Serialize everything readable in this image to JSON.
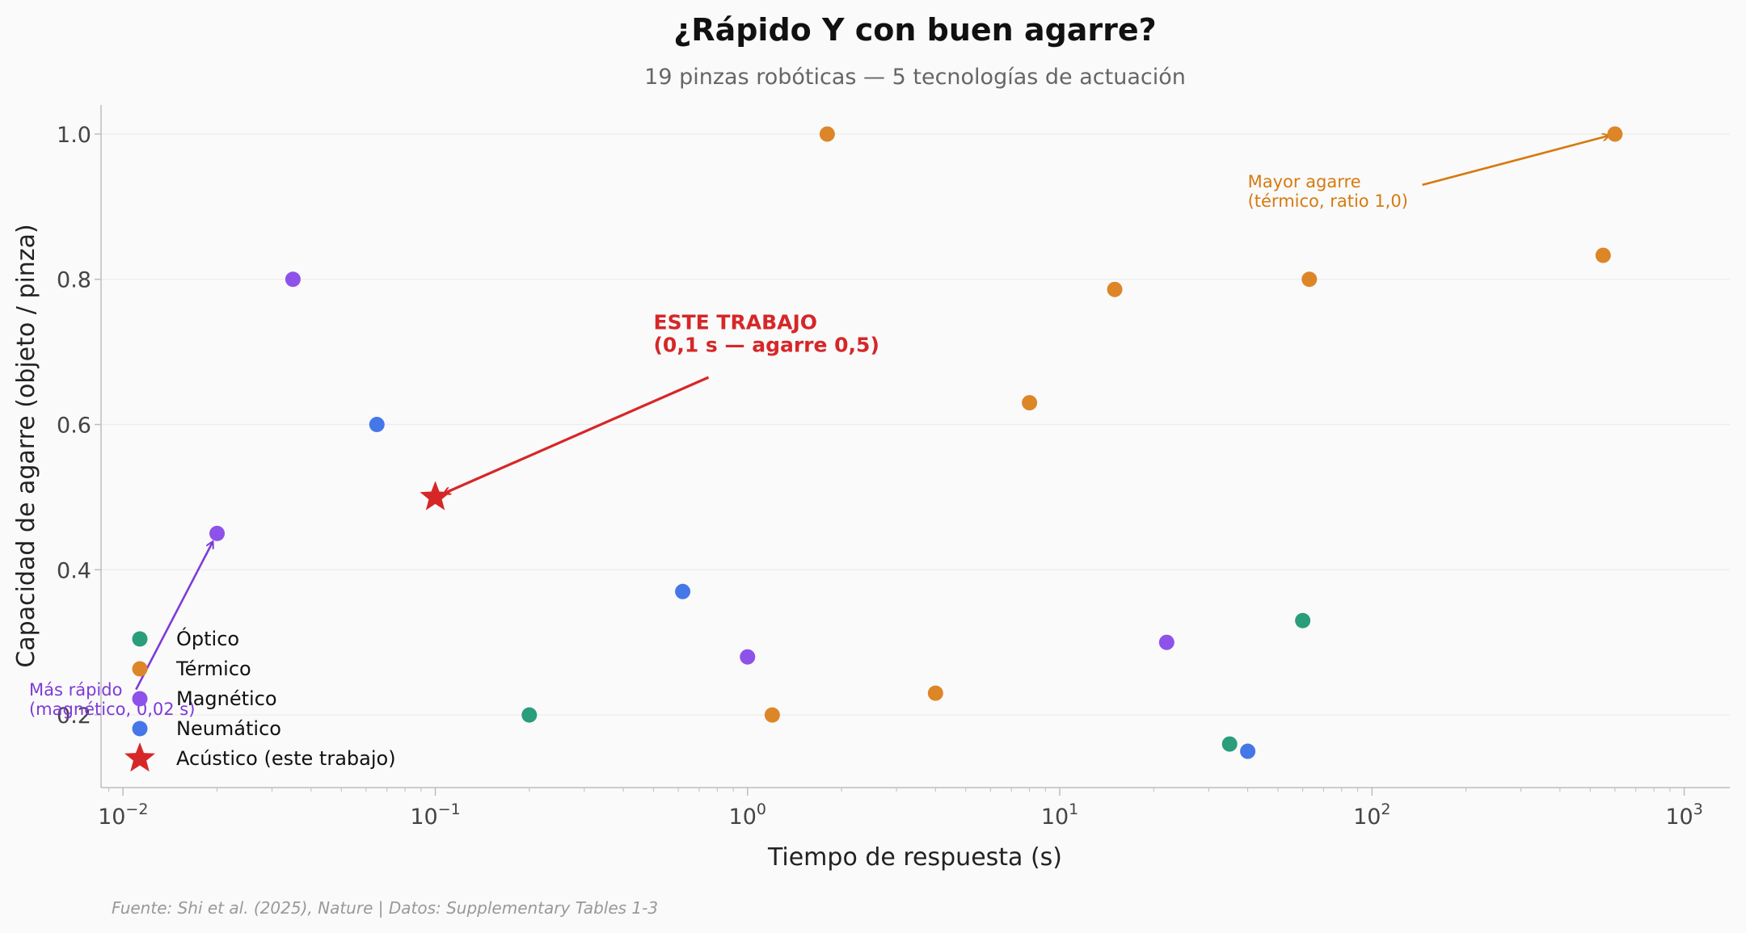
{
  "chart_data": {
    "type": "scatter",
    "title": "¿Rápido Y con buen agarre?",
    "subtitle": "19 pinzas robóticas — 5 tecnologías de actuación",
    "xlabel": "Tiempo de respuesta (s)",
    "ylabel": "Capacidad de agarre (objeto / pinza)",
    "xscale": "log",
    "xlim": [
      0.0085,
      1400
    ],
    "ylim": [
      0.1,
      1.04
    ],
    "x_ticks": [
      {
        "value": 0.01,
        "base": "10",
        "exp": "−2"
      },
      {
        "value": 0.1,
        "base": "10",
        "exp": "−1"
      },
      {
        "value": 1,
        "base": "10",
        "exp": "0"
      },
      {
        "value": 10,
        "base": "10",
        "exp": "1"
      },
      {
        "value": 100,
        "base": "10",
        "exp": "2"
      },
      {
        "value": 1000,
        "base": "10",
        "exp": "3"
      }
    ],
    "y_ticks": [
      {
        "value": 0.2,
        "label": "0.2"
      },
      {
        "value": 0.4,
        "label": "0.4"
      },
      {
        "value": 0.6,
        "label": "0.6"
      },
      {
        "value": 0.8,
        "label": "0.8"
      },
      {
        "value": 1.0,
        "label": "1.0"
      }
    ],
    "grid": "horizontal",
    "legend_position": "lower-left",
    "series": [
      {
        "name": "Óptico",
        "color": "#2a9d7a",
        "marker": "circle",
        "points": [
          {
            "x": 0.2,
            "y": 0.2
          },
          {
            "x": 35,
            "y": 0.16
          },
          {
            "x": 60,
            "y": 0.33
          }
        ]
      },
      {
        "name": "Térmico",
        "color": "#dd8628",
        "marker": "circle",
        "points": [
          {
            "x": 1.8,
            "y": 1.0
          },
          {
            "x": 1.2,
            "y": 0.2
          },
          {
            "x": 4,
            "y": 0.23
          },
          {
            "x": 8,
            "y": 0.63
          },
          {
            "x": 15,
            "y": 0.786
          },
          {
            "x": 63,
            "y": 0.8
          },
          {
            "x": 550,
            "y": 0.833
          },
          {
            "x": 600,
            "y": 1.0
          }
        ]
      },
      {
        "name": "Magnético",
        "color": "#8e52ea",
        "marker": "circle",
        "points": [
          {
            "x": 0.02,
            "y": 0.45
          },
          {
            "x": 0.035,
            "y": 0.8
          },
          {
            "x": 1,
            "y": 0.28
          },
          {
            "x": 22,
            "y": 0.3
          }
        ]
      },
      {
        "name": "Neumático",
        "color": "#4577e8",
        "marker": "circle",
        "points": [
          {
            "x": 0.065,
            "y": 0.6
          },
          {
            "x": 0.62,
            "y": 0.37
          },
          {
            "x": 40,
            "y": 0.15
          }
        ]
      },
      {
        "name": "Acústico (este trabajo)",
        "color": "#d62728",
        "marker": "star",
        "points": [
          {
            "x": 0.1,
            "y": 0.5
          }
        ]
      }
    ],
    "annotations": [
      {
        "id": "this_work",
        "lines": [
          "ESTE TRABAJO",
          "(0,1 s — agarre 0,5)"
        ],
        "color": "#d62728",
        "target": {
          "x": 0.1,
          "y": 0.5
        },
        "text_at": {
          "x": 0.5,
          "y": 0.7
        }
      },
      {
        "id": "max_grip",
        "lines": [
          "Mayor agarre",
          "(térmico, ratio 1,0)"
        ],
        "color": "#d67a0f",
        "target": {
          "x": 600,
          "y": 1.0
        },
        "text_at": {
          "x": 40,
          "y": 0.9
        }
      },
      {
        "id": "fastest",
        "lines": [
          "Más rápido",
          "(magnético, 0,02 s)"
        ],
        "color": "#7e3bd8",
        "target": {
          "x": 0.02,
          "y": 0.45
        },
        "text_at": {
          "x": 0.005,
          "y": 0.2
        }
      }
    ],
    "source": "Fuente: Shi et al. (2025), Nature | Datos: Supplementary Tables 1-3"
  }
}
